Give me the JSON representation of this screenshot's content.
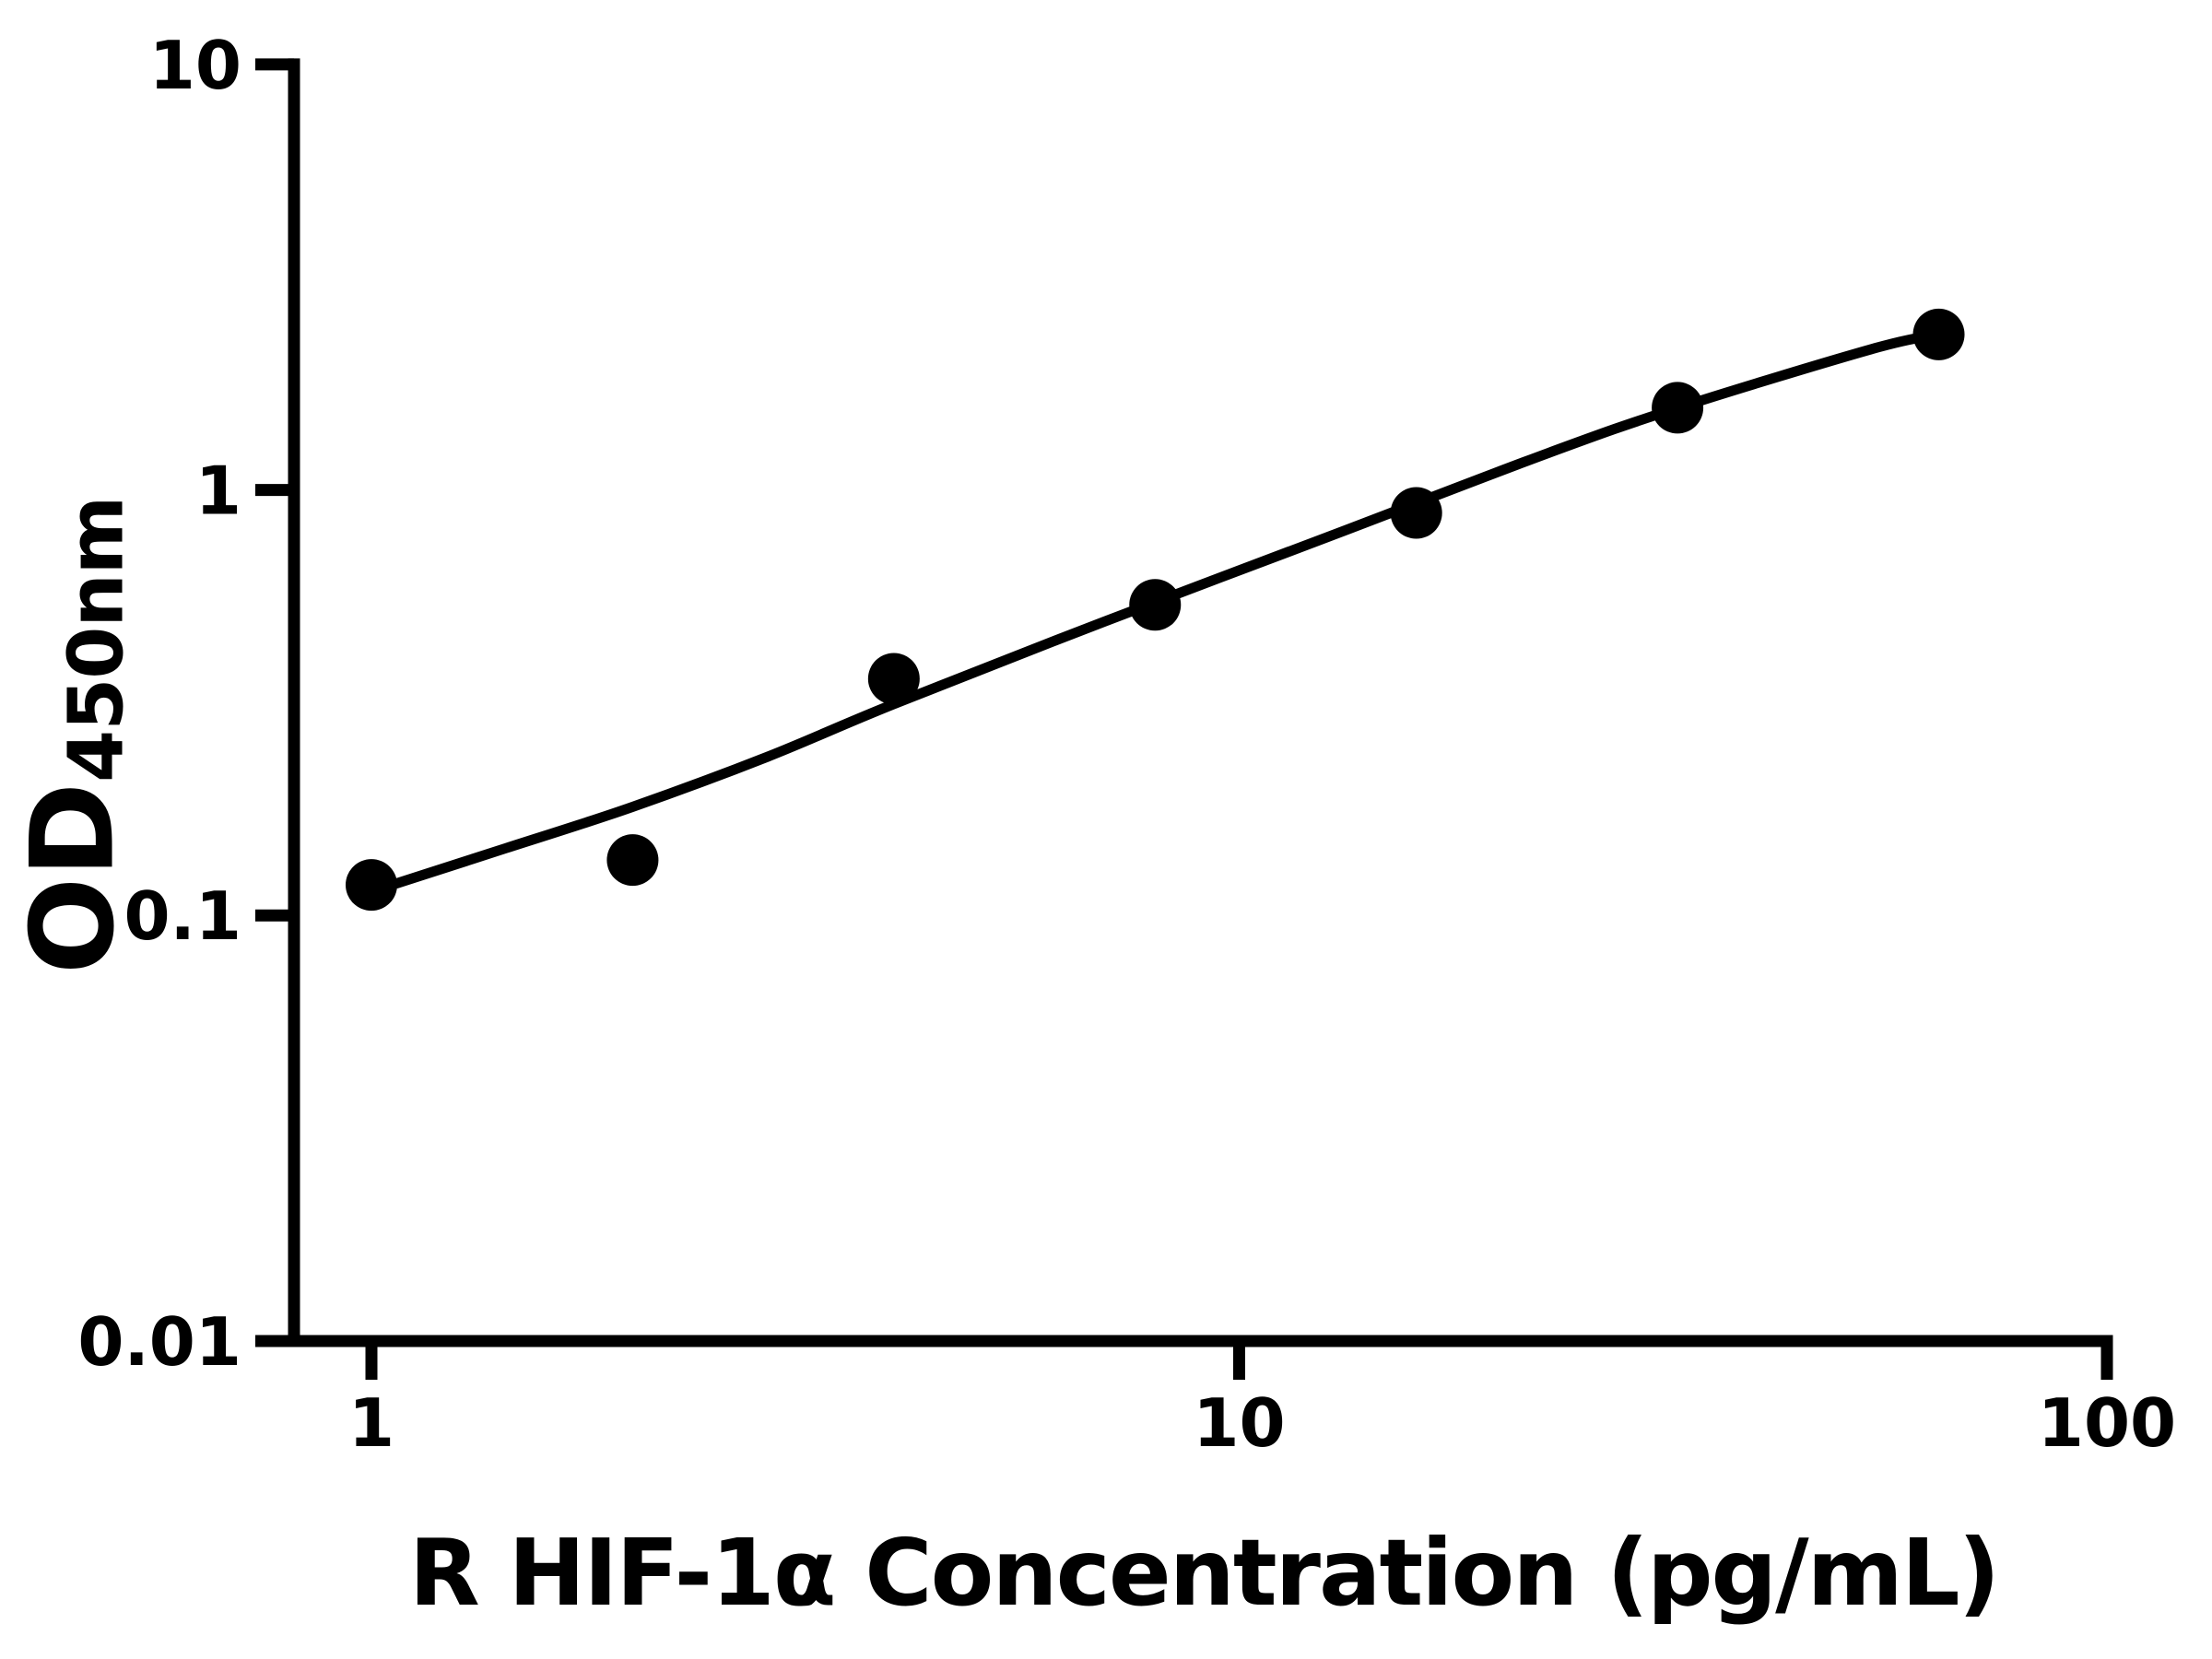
{
  "chart_data": {
    "type": "scatter",
    "title": "",
    "xlabel": "R HIF-1α Concentration (pg/mL)",
    "ylabel_main": "OD",
    "ylabel_sub": "450nm",
    "background": "#ffffff",
    "axis_color": "#000000",
    "marker_color": "#000000",
    "curve_color": "#000000",
    "grid": false,
    "legend": null,
    "x_axis": {
      "scale": "log",
      "min": 1,
      "max": 100,
      "ticks": [
        1,
        10,
        100
      ]
    },
    "y_axis": {
      "scale": "log",
      "min": 0.01,
      "max": 10,
      "ticks": [
        10,
        1,
        0.1,
        0.01
      ]
    },
    "points": [
      {
        "x": 1,
        "y": 0.118
      },
      {
        "x": 2,
        "y": 0.135
      },
      {
        "x": 4,
        "y": 0.36
      },
      {
        "x": 8,
        "y": 0.537
      },
      {
        "x": 16,
        "y": 0.883
      },
      {
        "x": 32,
        "y": 1.56
      },
      {
        "x": 64,
        "y": 2.32
      }
    ],
    "fit_curve": [
      {
        "x": 1.07,
        "y": 0.119
      },
      {
        "x": 1.43,
        "y": 0.144
      },
      {
        "x": 2.0,
        "y": 0.18
      },
      {
        "x": 2.86,
        "y": 0.236
      },
      {
        "x": 4.0,
        "y": 0.314
      },
      {
        "x": 7.0,
        "y": 0.491
      },
      {
        "x": 13.0,
        "y": 0.792
      },
      {
        "x": 22.7,
        "y": 1.221
      },
      {
        "x": 32.0,
        "y": 1.558
      },
      {
        "x": 53.5,
        "y": 2.142
      },
      {
        "x": 64.0,
        "y": 2.32
      }
    ]
  }
}
